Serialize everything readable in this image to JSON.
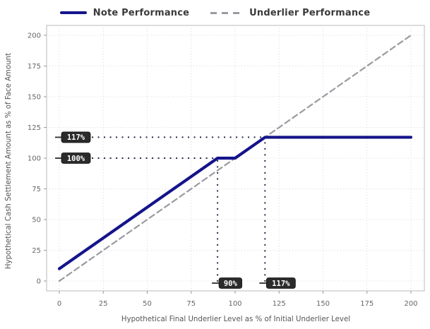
{
  "legend": {
    "items": [
      {
        "label": "Note Performance",
        "swatch": "solid-navy-line"
      },
      {
        "label": "Underlier Performance",
        "swatch": "dashed-gray-line"
      }
    ]
  },
  "colors": {
    "note_line": "#14148b",
    "underlier_line": "#9a9aa0",
    "grid": "#d9d9e0",
    "plot_border": "#b8b8bf",
    "tick": "#999999",
    "tick_label": "#666666",
    "axis_title": "#555555",
    "guide_dots": "#26264a",
    "badge_bg": "#2b2b2b",
    "badge_text": "#ffffff",
    "legend_text": "#3a3a3a"
  },
  "chart_data": {
    "type": "line",
    "title": "",
    "xlabel": "Hypothetical Final Underlier Level as % of Initial Underlier Level",
    "ylabel": "Hypothetical Cash Settlement Amount as % of Face Amount",
    "xlim": [
      -7,
      208
    ],
    "ylim": [
      -8,
      208
    ],
    "x_ticks": [
      0,
      25,
      50,
      75,
      100,
      125,
      150,
      175,
      200
    ],
    "y_ticks": [
      0,
      25,
      50,
      75,
      100,
      125,
      150,
      175,
      200
    ],
    "grid": true,
    "legend_position": "top-center",
    "series": [
      {
        "name": "Underlier Performance",
        "style": "dashed",
        "color": "#9a9aa0",
        "width": 2.2,
        "points": [
          [
            0,
            0
          ],
          [
            200,
            200
          ]
        ]
      },
      {
        "name": "Note Performance",
        "style": "solid",
        "color": "#14148b",
        "width": 4.2,
        "points": [
          [
            0,
            10
          ],
          [
            90,
            100
          ],
          [
            100,
            100
          ],
          [
            117,
            117
          ],
          [
            200,
            117
          ]
        ]
      }
    ],
    "guides": [
      {
        "x1": 18.5,
        "y1": 117,
        "x2": 117,
        "y2": 117
      },
      {
        "x1": 18.5,
        "y1": 100,
        "x2": 90,
        "y2": 100
      },
      {
        "x1": 90,
        "y1": -0.5,
        "x2": 90,
        "y2": 100
      },
      {
        "x1": 117,
        "y1": -0.5,
        "x2": 117,
        "y2": 117
      }
    ],
    "badges": [
      {
        "label": "117%",
        "axis": "y",
        "value": 117
      },
      {
        "label": "100%",
        "axis": "y",
        "value": 100
      },
      {
        "label": "90%",
        "axis": "x",
        "value": 90
      },
      {
        "label": "117%",
        "axis": "x",
        "value": 117
      }
    ]
  }
}
